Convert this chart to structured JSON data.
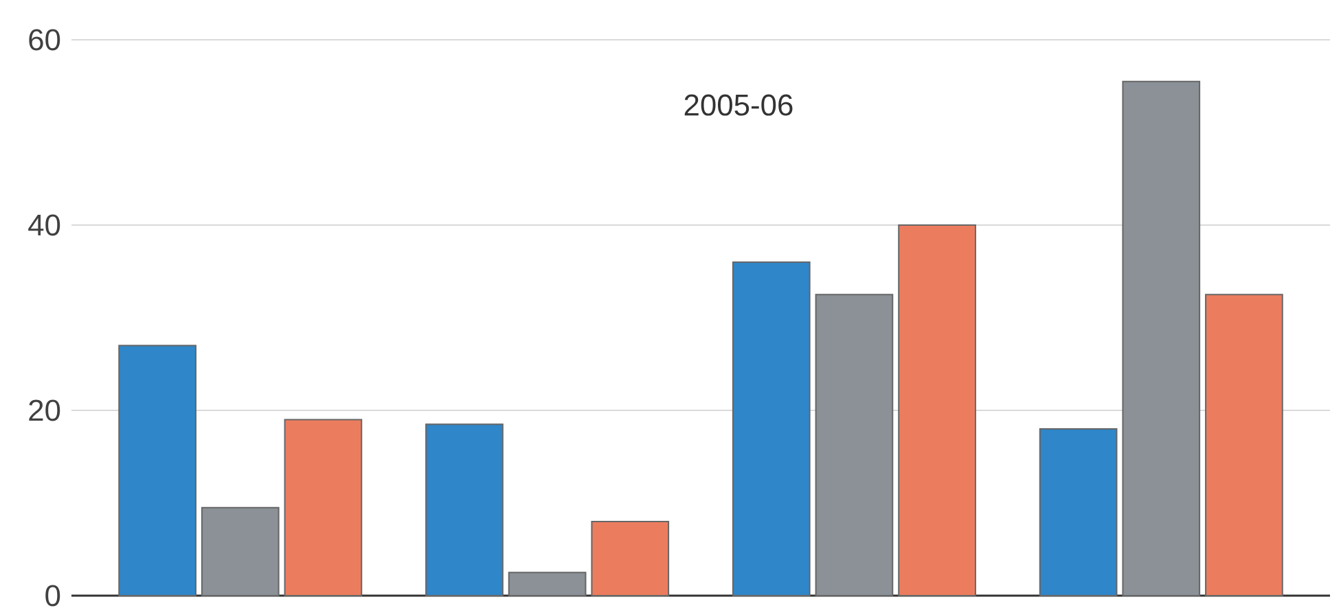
{
  "chart_data": {
    "type": "bar",
    "title": "2005-06",
    "categories": [
      null,
      null,
      null,
      null
    ],
    "series": [
      {
        "color": "#2f86c8",
        "values": [
          27,
          18.5,
          36,
          18
        ]
      },
      {
        "color": "#8b9197",
        "values": [
          9.5,
          2.5,
          32.5,
          55.5
        ]
      },
      {
        "color": "#ec7c5e",
        "values": [
          19,
          8,
          40,
          32.5
        ]
      }
    ],
    "ylim": [
      0,
      60
    ],
    "yticks": [
      0,
      20,
      40,
      60
    ],
    "grid": "y"
  }
}
